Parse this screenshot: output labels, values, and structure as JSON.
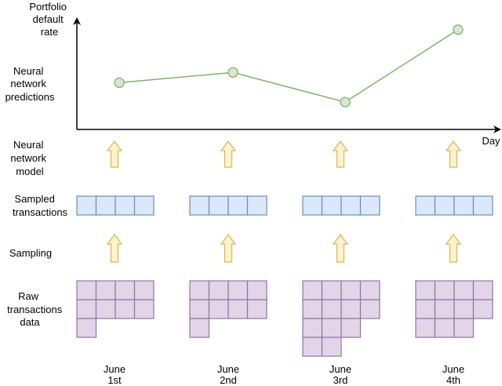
{
  "y_axis_label": [
    "Portfolio",
    "default",
    "rate"
  ],
  "x_axis_label": "Day",
  "row_labels": {
    "predictions": [
      "Neural",
      "network",
      "predictions"
    ],
    "model": [
      "Neural",
      "network",
      "model"
    ],
    "sampled": [
      "Sampled",
      "transactions"
    ],
    "sampling": [
      "Sampling"
    ],
    "raw": [
      "Raw",
      "transactions",
      "data"
    ]
  },
  "days": [
    {
      "line1": "June",
      "line2": "1st",
      "prediction": 0.42,
      "raw_cells_per_row": [
        4,
        4,
        1
      ]
    },
    {
      "line1": "June",
      "line2": "2nd",
      "prediction": 0.52,
      "raw_cells_per_row": [
        4,
        4,
        1
      ]
    },
    {
      "line1": "June",
      "line2": "3rd",
      "prediction": 0.23,
      "raw_cells_per_row": [
        4,
        4,
        3,
        2
      ]
    },
    {
      "line1": "June",
      "line2": "4th",
      "prediction": 0.94,
      "raw_cells_per_row": [
        4,
        4,
        3
      ]
    }
  ],
  "sampled_cells_per_day": 4,
  "colors": {
    "line": "#82b366",
    "point_fill": "#d5e8d4",
    "sampled_fill": "#dae8fc",
    "sampled_stroke": "#6c8ebf",
    "raw_fill": "#e1d5e7",
    "raw_stroke": "#9673a6",
    "arrow_fill": "#fff2cc",
    "arrow_stroke": "#d6b656",
    "axis": "#000000"
  }
}
